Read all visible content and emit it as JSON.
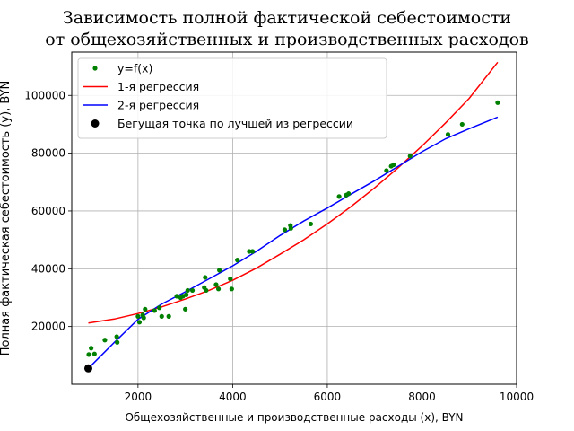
{
  "chart_data": {
    "type": "line",
    "title_line1": "Зависимость полной фактической себестоимости",
    "title_line2": "от общехозяйственных и производственных расходов",
    "xlabel": "Общехозяйственные и производственные расходы (x), BYN",
    "ylabel": "Полная фактическая себестоимость (y), BYN",
    "xlim": [
      600,
      10000
    ],
    "ylim": [
      0,
      115000
    ],
    "x_ticks": [
      2000,
      4000,
      6000,
      8000,
      10000
    ],
    "y_ticks": [
      20000,
      40000,
      60000,
      80000,
      100000
    ],
    "grid": true,
    "legend_position": "top-left",
    "colors": {
      "points": "#008000",
      "regression1": "#ff0000",
      "regression2": "#0000ff",
      "running_point": "#000000"
    },
    "legend": [
      {
        "label": "y=f(x)",
        "kind": "marker-small",
        "color": "#008000"
      },
      {
        "label": "1-я регрессия",
        "kind": "line",
        "color": "#ff0000"
      },
      {
        "label": "2-я регрессия",
        "kind": "line",
        "color": "#0000ff"
      },
      {
        "label": "Бегущая точка по лучшей из регрессии",
        "kind": "marker-large",
        "color": "#000000"
      }
    ],
    "series": [
      {
        "name": "y=f(x)",
        "kind": "scatter",
        "points": [
          [
            960,
            10300
          ],
          [
            1010,
            12500
          ],
          [
            1080,
            10500
          ],
          [
            1300,
            15300
          ],
          [
            1550,
            16500
          ],
          [
            1560,
            14500
          ],
          [
            2000,
            23500
          ],
          [
            2030,
            21500
          ],
          [
            2100,
            24000
          ],
          [
            2120,
            23000
          ],
          [
            2150,
            26000
          ],
          [
            2350,
            25500
          ],
          [
            2450,
            26500
          ],
          [
            2500,
            23500
          ],
          [
            2650,
            23500
          ],
          [
            2820,
            30500
          ],
          [
            2900,
            30000
          ],
          [
            2950,
            30500
          ],
          [
            3000,
            26000
          ],
          [
            3020,
            31000
          ],
          [
            3050,
            32500
          ],
          [
            3150,
            32500
          ],
          [
            3400,
            33500
          ],
          [
            3420,
            37000
          ],
          [
            3440,
            32500
          ],
          [
            3650,
            34500
          ],
          [
            3700,
            33000
          ],
          [
            3720,
            39500
          ],
          [
            3950,
            36500
          ],
          [
            3980,
            33000
          ],
          [
            4100,
            43000
          ],
          [
            4350,
            46000
          ],
          [
            4420,
            46000
          ],
          [
            5100,
            53500
          ],
          [
            5220,
            55000
          ],
          [
            5230,
            54000
          ],
          [
            5650,
            55500
          ],
          [
            6250,
            65000
          ],
          [
            6400,
            65500
          ],
          [
            6450,
            66000
          ],
          [
            7250,
            74000
          ],
          [
            7350,
            75500
          ],
          [
            7400,
            76000
          ],
          [
            7750,
            79000
          ],
          [
            8550,
            86500
          ],
          [
            8850,
            90000
          ],
          [
            9600,
            97500
          ]
        ]
      },
      {
        "name": "1-я регрессия",
        "kind": "line",
        "points": [
          [
            950,
            21200
          ],
          [
            1500,
            22600
          ],
          [
            2000,
            24500
          ],
          [
            2500,
            26800
          ],
          [
            3000,
            29500
          ],
          [
            3500,
            32500
          ],
          [
            4000,
            36000
          ],
          [
            4500,
            40200
          ],
          [
            5000,
            45000
          ],
          [
            5500,
            50000
          ],
          [
            6000,
            55500
          ],
          [
            6500,
            61500
          ],
          [
            7000,
            68000
          ],
          [
            7500,
            75000
          ],
          [
            8000,
            82500
          ],
          [
            8500,
            90500
          ],
          [
            9000,
            99000
          ],
          [
            9600,
            111500
          ]
        ]
      },
      {
        "name": "2-я регрессия",
        "kind": "line",
        "points": [
          [
            950,
            5500
          ],
          [
            1500,
            14500
          ],
          [
            2000,
            22500
          ],
          [
            2500,
            27800
          ],
          [
            3000,
            32000
          ],
          [
            3500,
            36500
          ],
          [
            4000,
            41000
          ],
          [
            4500,
            46000
          ],
          [
            5000,
            51500
          ],
          [
            5500,
            56500
          ],
          [
            6000,
            61000
          ],
          [
            6500,
            65800
          ],
          [
            7000,
            70500
          ],
          [
            7500,
            75500
          ],
          [
            8000,
            80500
          ],
          [
            8500,
            85000
          ],
          [
            9000,
            88500
          ],
          [
            9600,
            92500
          ]
        ]
      },
      {
        "name": "Бегущая точка по лучшей из регрессии",
        "kind": "marker",
        "points": [
          [
            950,
            5500
          ]
        ]
      }
    ]
  }
}
